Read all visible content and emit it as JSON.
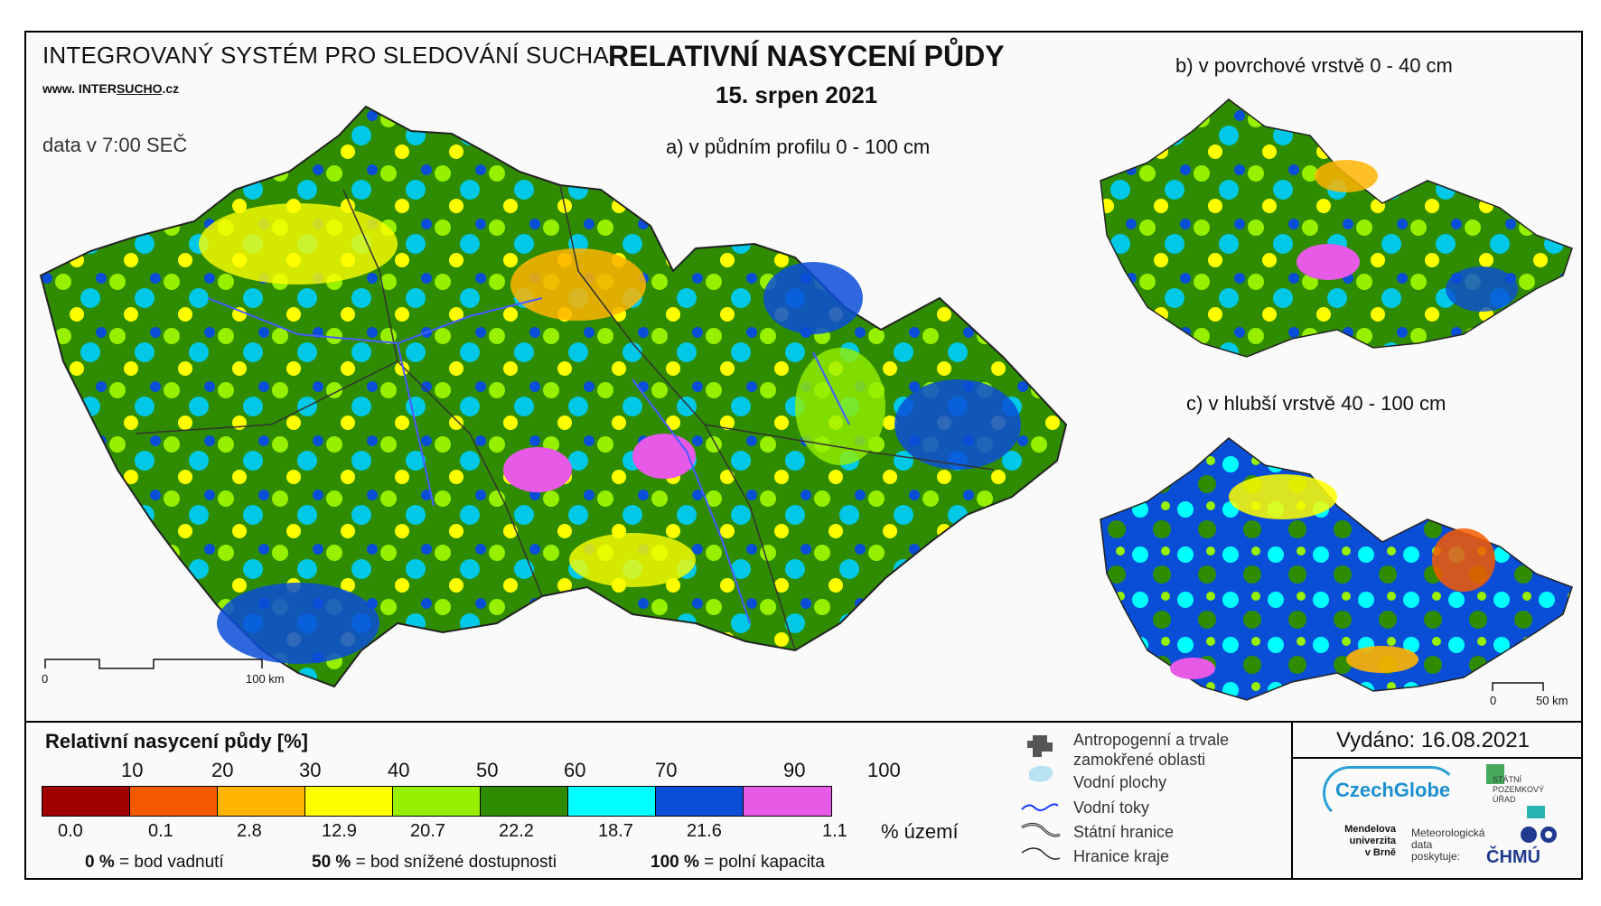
{
  "header": {
    "system_title": "INTEGROVANÝ SYSTÉM PRO SLEDOVÁNÍ SUCHA",
    "url_prefix": "www. INTER",
    "url_underlined": "SUCHO",
    "url_suffix": ".cz",
    "data_time": "data v 7:00 SEČ",
    "main_title": "RELATIVNÍ NASYCENÍ PŮDY",
    "date": "15. srpen 2021"
  },
  "maps": {
    "a": {
      "label": "a) v půdním profilu 0 - 100 cm",
      "scale_start": "0",
      "scale_end": "100 km"
    },
    "b": {
      "label": "b) v povrchové vrstvě 0 - 40 cm"
    },
    "c": {
      "label": "c) v hlubší vrstvě 40 - 100 cm",
      "scale_start": "0",
      "scale_end": "50 km"
    }
  },
  "legend": {
    "title": "Relativní nasycení půdy [%]",
    "thresholds": [
      "10",
      "20",
      "30",
      "40",
      "50",
      "60",
      "70",
      "90",
      "100"
    ],
    "colors": [
      "#a00000",
      "#f55a00",
      "#ffb400",
      "#ffff00",
      "#96f000",
      "#2f8c00",
      "#00ffff",
      "#0a4ed8",
      "#e65ae6"
    ],
    "area_percent": [
      "0.0",
      "0.1",
      "2.8",
      "12.9",
      "20.7",
      "22.2",
      "18.7",
      "21.6",
      "1.1"
    ],
    "area_unit": "% území",
    "notes": [
      {
        "value": "0 %",
        "text": "= bod vadnutí"
      },
      {
        "value": "50 %",
        "text": "= bod snížené dostupnosti"
      },
      {
        "value": "100 %",
        "text": "= polní kapacita"
      }
    ]
  },
  "map_legend": {
    "items": [
      {
        "icon": "anthropogenic-icon",
        "label": "Antropogenní a trvale zamokřené oblasti"
      },
      {
        "icon": "water-area-icon",
        "label": "Vodní plochy"
      },
      {
        "icon": "river-icon",
        "label": "Vodní toky"
      },
      {
        "icon": "state-border-icon",
        "label": "Státní hranice"
      },
      {
        "icon": "region-border-icon",
        "label": "Hranice kraje"
      }
    ]
  },
  "footer": {
    "issued": "Vydáno: 16.08.2021",
    "czechglobe": "CzechGlobe",
    "spu": "STÁTNÍ POZEMKOVÝ ÚŘAD",
    "mendel": "Mendelova univerzita v Brně",
    "met_data": "Meteorologická data poskytuje:",
    "chmu": "ČHMÚ"
  }
}
